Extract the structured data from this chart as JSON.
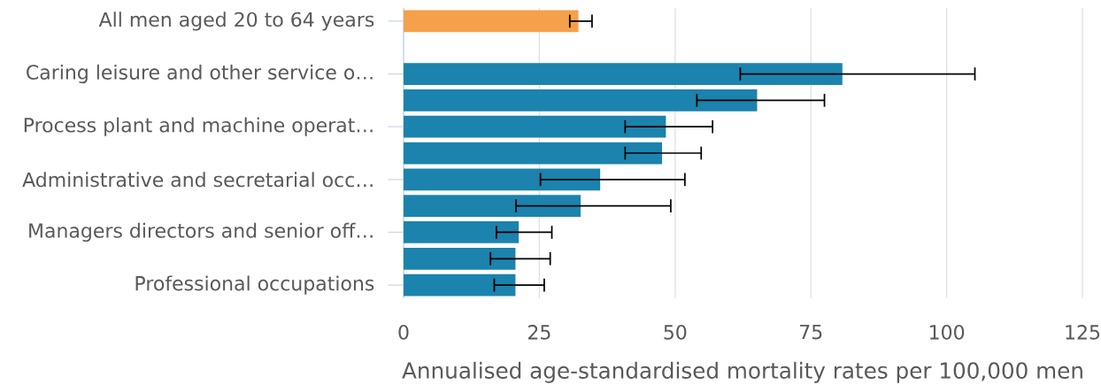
{
  "chart_data": {
    "type": "bar",
    "orientation": "horizontal",
    "categories": [
      "All men aged 20 to 64 years",
      null,
      "Caring leisure and other service o…",
      null,
      "Process plant and machine operat…",
      null,
      "Administrative and secretarial occ…",
      null,
      "Managers directors and senior off…",
      null,
      "Professional occupations"
    ],
    "values": [
      32.2,
      null,
      80.8,
      65.1,
      48.3,
      47.6,
      36.2,
      32.6,
      21.2,
      20.6,
      20.6
    ],
    "colors": [
      "#f5a04a",
      "#1b83ad",
      "#1b83ad",
      "#1b83ad",
      "#1b83ad",
      "#1b83ad",
      "#1b83ad",
      "#1b83ad",
      "#1b83ad",
      "#1b83ad",
      "#1b83ad"
    ],
    "errors": [
      [
        30.6,
        34.7
      ],
      null,
      [
        62.0,
        105.2
      ],
      [
        54.0,
        77.5
      ],
      [
        40.8,
        56.9
      ],
      [
        40.8,
        54.8
      ],
      [
        25.2,
        51.8
      ],
      [
        20.7,
        49.2
      ],
      [
        17.1,
        27.3
      ],
      [
        16.0,
        27.0
      ],
      [
        16.7,
        25.9
      ]
    ],
    "xlabel": "Annualised age-standardised mortality rates per 100,000 men",
    "xlim": [
      0,
      125
    ],
    "xticks": [
      0,
      25,
      50,
      75,
      100,
      125
    ],
    "grid": "x"
  }
}
